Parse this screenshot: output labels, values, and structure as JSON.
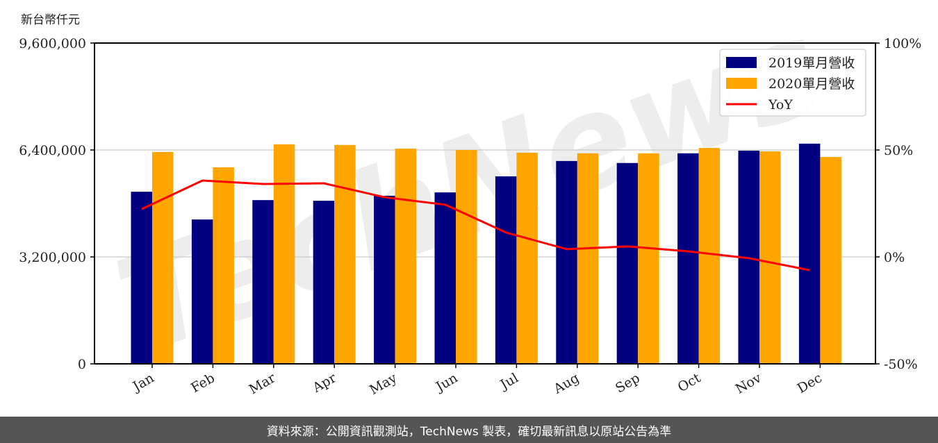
{
  "chart_data": {
    "type": "bar+line",
    "title": "",
    "unit_label": "新台幣仟元",
    "categories": [
      "Jan",
      "Feb",
      "Mar",
      "Apr",
      "May",
      "Jun",
      "Jul",
      "Aug",
      "Sep",
      "Oct",
      "Nov",
      "Dec"
    ],
    "series": [
      {
        "name": "2019單月營收",
        "type": "bar",
        "axis": "left",
        "color": "#000080",
        "values": [
          5150000,
          4320000,
          4900000,
          4880000,
          5030000,
          5130000,
          5610000,
          6070000,
          6010000,
          6300000,
          6380000,
          6590000
        ]
      },
      {
        "name": "2020單月營收",
        "type": "bar",
        "axis": "left",
        "color": "#FFA500",
        "values": [
          6340000,
          5880000,
          6570000,
          6550000,
          6440000,
          6400000,
          6320000,
          6300000,
          6300000,
          6460000,
          6360000,
          6190000
        ]
      },
      {
        "name": "YoY",
        "type": "line",
        "axis": "right",
        "color": "#FF0000",
        "values": [
          22.4,
          35.7,
          34.1,
          34.4,
          27.9,
          24.4,
          11.4,
          3.6,
          4.9,
          2.6,
          -0.6,
          -6.2
        ]
      }
    ],
    "left_axis": {
      "ylim": [
        0,
        9600000
      ],
      "ticks": [
        "0",
        "3,200,000",
        "6,400,000",
        "9,600,000"
      ],
      "tick_values": [
        0,
        3200000,
        6400000,
        9600000
      ]
    },
    "right_axis": {
      "ylim": [
        -50,
        100
      ],
      "ticks": [
        "-50%",
        "0%",
        "50%",
        "100%"
      ],
      "tick_values": [
        -50,
        0,
        50,
        100
      ]
    },
    "grid": true,
    "legend_position": "upper right",
    "xlabel": "",
    "ylabel": "新台幣仟元"
  },
  "watermark": "TechNews",
  "footer": {
    "text": "資料來源：公開資訊觀測站，TechNews 製表，確切最新訊息以原站公告為準"
  }
}
